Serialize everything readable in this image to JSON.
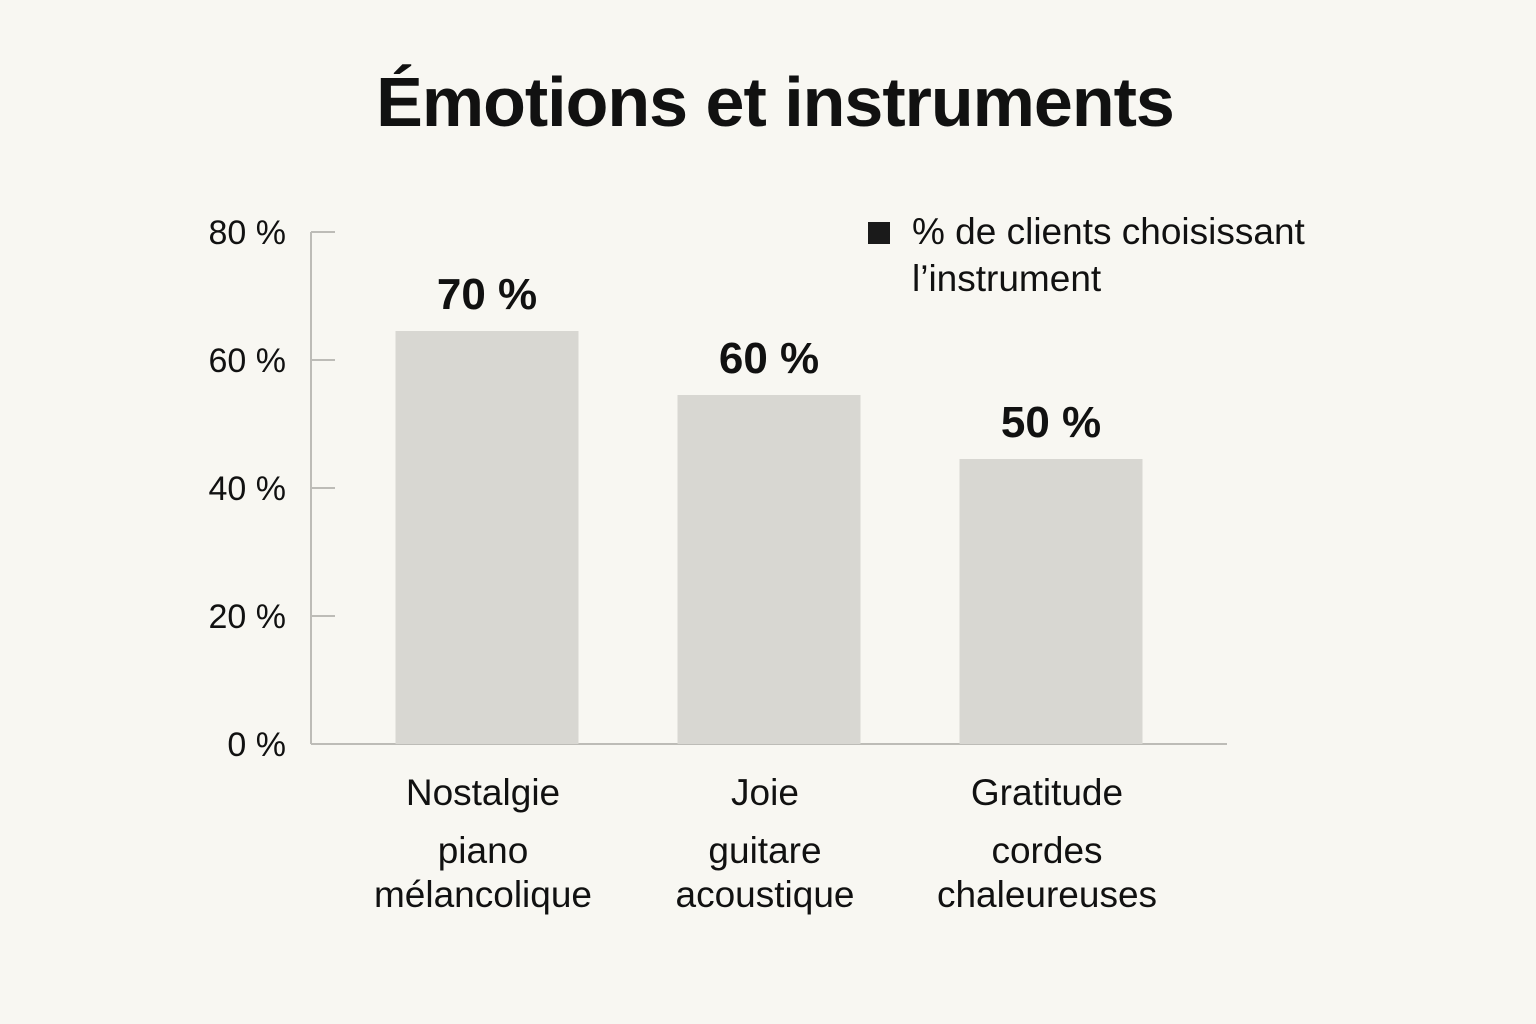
{
  "chart_data": {
    "type": "bar",
    "title": "Émotions et instruments",
    "categories": [
      {
        "emotion": "Nostalgie",
        "instrument_line1": "piano",
        "instrument_line2": "mélancolique"
      },
      {
        "emotion": "Joie",
        "instrument_line1": "guitare",
        "instrument_line2": "acoustique"
      },
      {
        "emotion": "Gratitude",
        "instrument_line1": "cordes",
        "instrument_line2": "chaleureuses"
      }
    ],
    "series": [
      {
        "name": "% de clients choisissant l’instrument",
        "values": [
          70,
          60,
          50
        ],
        "data_labels": [
          "70 %",
          "60 %",
          "50 %"
        ]
      }
    ],
    "ylim": [
      0,
      80
    ],
    "yticks": [
      0,
      20,
      40,
      60,
      80
    ],
    "ytick_labels": [
      "0 %",
      "20 %",
      "40 %",
      "60 %",
      "80 %"
    ],
    "legend_position": "top-right",
    "grid": false
  },
  "colors": {
    "bar": "#d8d7d2",
    "axis": "#bdbcb7",
    "legend_swatch": "#1a1a1a",
    "background": "#f8f7f2"
  }
}
